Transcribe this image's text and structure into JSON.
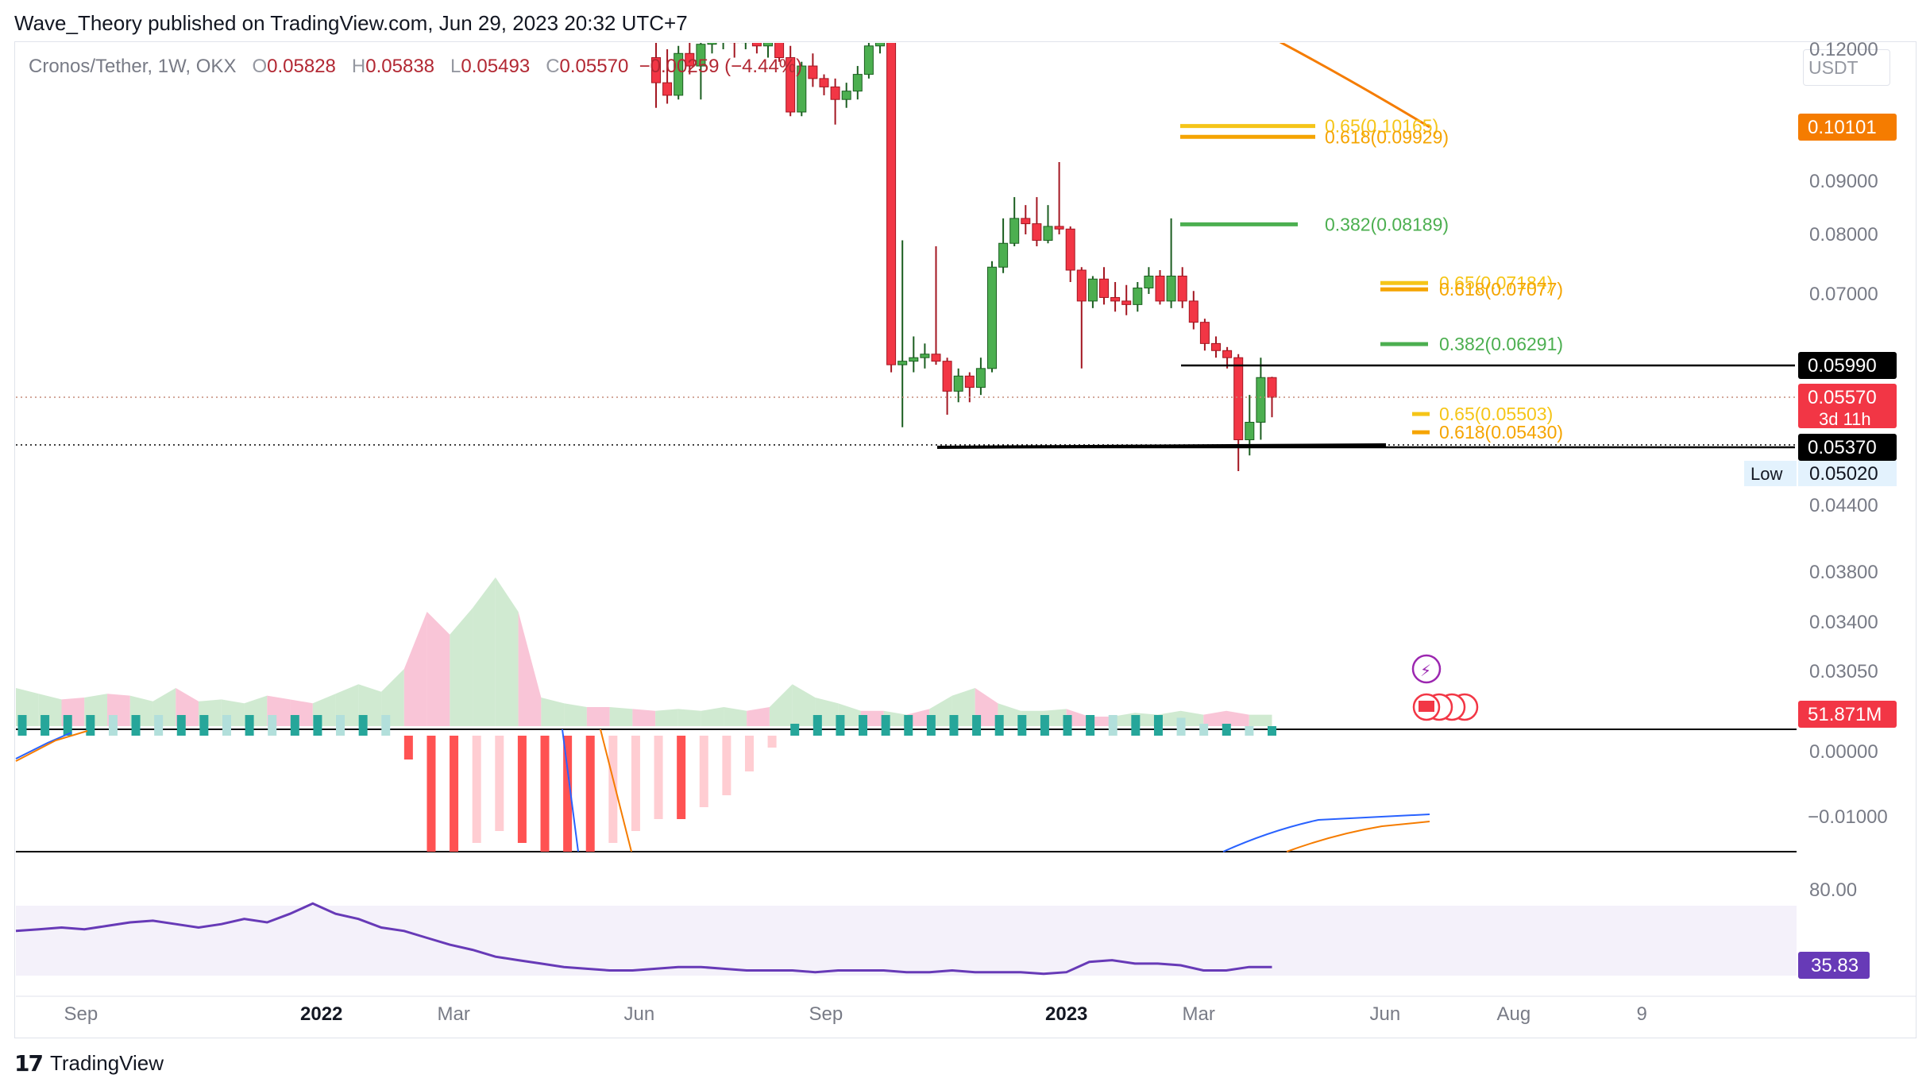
{
  "header": {
    "publisher_line": "Wave_Theory published on TradingView.com, Jun 29, 2023 20:32 UTC+7"
  },
  "legend": {
    "symbol": "Cronos/Tether, 1W, OKX",
    "open_label": "O",
    "open": "0.05828",
    "high_label": "H",
    "high": "0.05838",
    "low_label": "L",
    "low": "0.05493",
    "close_label": "C",
    "close": "0.05570",
    "change": "−0.00259 (−4.44%)"
  },
  "currency": "USDT",
  "price_axis": {
    "ticks": [
      "0.12000",
      "0.09000",
      "0.08000",
      "0.07000",
      "0.04400",
      "0.03800",
      "0.03400",
      "0.03050"
    ],
    "badges": [
      {
        "name": "fib-level-badge",
        "text": "0.10101",
        "color": "#f57c00"
      },
      {
        "name": "resistance-badge",
        "text": "0.05990",
        "color": "#000000"
      },
      {
        "name": "last-price-badge",
        "text": "0.05570",
        "sub": "3d 11h",
        "color": "#f23645"
      },
      {
        "name": "support-badge",
        "text": "0.05370",
        "color": "#000000"
      }
    ],
    "low_label": "Low",
    "low_value": "0.05020",
    "volume_badge": "51.871M"
  },
  "macd_axis": {
    "ticks": [
      "0.00000",
      "−0.01000"
    ]
  },
  "rsi_axis": {
    "ticks": [
      "80.00"
    ],
    "badge": "35.83"
  },
  "time_axis": [
    "Sep",
    "2022",
    "Mar",
    "Jun",
    "Sep",
    "2023",
    "Mar",
    "Jun",
    "Aug",
    "9"
  ],
  "chart_data": {
    "type": "candlestick",
    "title": "Cronos/Tether, 1W, OKX",
    "series": [
      {
        "name": "CRO/USDT weekly",
        "candles": [
          {
            "o": 0.118,
            "h": 0.126,
            "l": 0.106,
            "c": 0.112
          },
          {
            "o": 0.112,
            "h": 0.12,
            "l": 0.107,
            "c": 0.109
          },
          {
            "o": 0.109,
            "h": 0.121,
            "l": 0.108,
            "c": 0.119
          },
          {
            "o": 0.119,
            "h": 0.125,
            "l": 0.114,
            "c": 0.116
          },
          {
            "o": 0.116,
            "h": 0.125,
            "l": 0.108,
            "c": 0.1215
          },
          {
            "o": 0.1215,
            "h": 0.126,
            "l": 0.119,
            "c": 0.124
          },
          {
            "o": 0.124,
            "h": 0.128,
            "l": 0.12,
            "c": 0.125
          },
          {
            "o": 0.125,
            "h": 0.127,
            "l": 0.118,
            "c": 0.122
          },
          {
            "o": 0.122,
            "h": 0.126,
            "l": 0.12,
            "c": 0.1245
          },
          {
            "o": 0.1245,
            "h": 0.127,
            "l": 0.119,
            "c": 0.121
          },
          {
            "o": 0.121,
            "h": 0.128,
            "l": 0.118,
            "c": 0.1255
          },
          {
            "o": 0.1255,
            "h": 0.127,
            "l": 0.117,
            "c": 0.118
          },
          {
            "o": 0.118,
            "h": 0.121,
            "l": 0.104,
            "c": 0.105
          },
          {
            "o": 0.105,
            "h": 0.117,
            "l": 0.104,
            "c": 0.116
          },
          {
            "o": 0.116,
            "h": 0.119,
            "l": 0.111,
            "c": 0.113
          },
          {
            "o": 0.113,
            "h": 0.114,
            "l": 0.109,
            "c": 0.111
          },
          {
            "o": 0.111,
            "h": 0.113,
            "l": 0.102,
            "c": 0.108
          },
          {
            "o": 0.108,
            "h": 0.112,
            "l": 0.106,
            "c": 0.11
          },
          {
            "o": 0.11,
            "h": 0.116,
            "l": 0.108,
            "c": 0.114
          },
          {
            "o": 0.114,
            "h": 0.123,
            "l": 0.113,
            "c": 0.121
          },
          {
            "o": 0.121,
            "h": 0.128,
            "l": 0.119,
            "c": 0.123
          },
          {
            "o": 0.123,
            "h": 0.124,
            "l": 0.059,
            "c": 0.06
          },
          {
            "o": 0.06,
            "h": 0.079,
            "l": 0.0545,
            "c": 0.0605
          },
          {
            "o": 0.0605,
            "h": 0.064,
            "l": 0.059,
            "c": 0.061
          },
          {
            "o": 0.061,
            "h": 0.063,
            "l": 0.0595,
            "c": 0.0615
          },
          {
            "o": 0.0615,
            "h": 0.078,
            "l": 0.06,
            "c": 0.0605
          },
          {
            "o": 0.0605,
            "h": 0.061,
            "l": 0.055,
            "c": 0.0565
          },
          {
            "o": 0.0565,
            "h": 0.0595,
            "l": 0.0555,
            "c": 0.0585
          },
          {
            "o": 0.0585,
            "h": 0.059,
            "l": 0.0555,
            "c": 0.057
          },
          {
            "o": 0.057,
            "h": 0.061,
            "l": 0.056,
            "c": 0.0595
          },
          {
            "o": 0.0595,
            "h": 0.0755,
            "l": 0.059,
            "c": 0.0745
          },
          {
            "o": 0.0745,
            "h": 0.083,
            "l": 0.0735,
            "c": 0.0785
          },
          {
            "o": 0.0785,
            "h": 0.087,
            "l": 0.078,
            "c": 0.083
          },
          {
            "o": 0.083,
            "h": 0.0855,
            "l": 0.08,
            "c": 0.082
          },
          {
            "o": 0.082,
            "h": 0.087,
            "l": 0.078,
            "c": 0.079
          },
          {
            "o": 0.079,
            "h": 0.0855,
            "l": 0.0785,
            "c": 0.0815
          },
          {
            "o": 0.0815,
            "h": 0.094,
            "l": 0.08,
            "c": 0.081
          },
          {
            "o": 0.081,
            "h": 0.0815,
            "l": 0.072,
            "c": 0.074
          },
          {
            "o": 0.074,
            "h": 0.0745,
            "l": 0.0595,
            "c": 0.069
          },
          {
            "o": 0.069,
            "h": 0.073,
            "l": 0.068,
            "c": 0.0725
          },
          {
            "o": 0.0725,
            "h": 0.0745,
            "l": 0.0685,
            "c": 0.0695
          },
          {
            "o": 0.0695,
            "h": 0.072,
            "l": 0.0675,
            "c": 0.069
          },
          {
            "o": 0.069,
            "h": 0.0715,
            "l": 0.067,
            "c": 0.0685
          },
          {
            "o": 0.0685,
            "h": 0.072,
            "l": 0.0675,
            "c": 0.071
          },
          {
            "o": 0.071,
            "h": 0.0745,
            "l": 0.07,
            "c": 0.073
          },
          {
            "o": 0.073,
            "h": 0.074,
            "l": 0.0685,
            "c": 0.069
          },
          {
            "o": 0.069,
            "h": 0.083,
            "l": 0.068,
            "c": 0.073
          },
          {
            "o": 0.073,
            "h": 0.0745,
            "l": 0.068,
            "c": 0.069
          },
          {
            "o": 0.069,
            "h": 0.0705,
            "l": 0.065,
            "c": 0.066
          },
          {
            "o": 0.066,
            "h": 0.0665,
            "l": 0.062,
            "c": 0.063
          },
          {
            "o": 0.063,
            "h": 0.064,
            "l": 0.061,
            "c": 0.062
          },
          {
            "o": 0.062,
            "h": 0.0625,
            "l": 0.0595,
            "c": 0.061
          },
          {
            "o": 0.061,
            "h": 0.0615,
            "l": 0.0502,
            "c": 0.054
          },
          {
            "o": 0.054,
            "h": 0.056,
            "l": 0.0525,
            "c": 0.0547
          },
          {
            "o": 0.0547,
            "h": 0.061,
            "l": 0.054,
            "c": 0.0583
          },
          {
            "o": 0.0583,
            "h": 0.0584,
            "l": 0.0549,
            "c": 0.0557
          }
        ]
      }
    ],
    "annotations": {
      "fib_levels": [
        {
          "label": "0.65(0.10165)",
          "value": 0.10165,
          "color": "#f5c518"
        },
        {
          "label": "0.618(0.09929)",
          "value": 0.09929,
          "color": "#f5a400"
        },
        {
          "label": "0.382(0.08189)",
          "value": 0.08189,
          "color": "#4caf50"
        },
        {
          "label": "0.65(0.07184)",
          "value": 0.07184,
          "color": "#f5c518"
        },
        {
          "label": "0.618(0.07077)",
          "value": 0.07077,
          "color": "#f5a400"
        },
        {
          "label": "0.382(0.06291)",
          "value": 0.06291,
          "color": "#4caf50"
        },
        {
          "label": "0.65(0.05503)",
          "value": 0.05503,
          "color": "#f5c518"
        },
        {
          "label": "0.618(0.05430)",
          "value": 0.0543,
          "color": "#f5a400"
        }
      ],
      "horizontal_lines": [
        0.0599,
        0.0537
      ],
      "moving_average_value": 0.10101
    },
    "volume": [
      0.2,
      0.17,
      0.14,
      0.15,
      0.17,
      0.16,
      0.13,
      0.2,
      0.13,
      0.14,
      0.12,
      0.16,
      0.14,
      0.12,
      0.17,
      0.22,
      0.18,
      0.3,
      0.6,
      0.48,
      0.62,
      0.78,
      0.6,
      0.15,
      0.12,
      0.1,
      0.1,
      0.09,
      0.08,
      0.09,
      0.08,
      0.1,
      0.08,
      0.1,
      0.22,
      0.15,
      0.12,
      0.08,
      0.08,
      0.06,
      0.09,
      0.16,
      0.2,
      0.12,
      0.08,
      0.08,
      0.09,
      0.05,
      0.05,
      0.07,
      0.06,
      0.08,
      0.06,
      0.08,
      0.06,
      0.06
    ],
    "volume_unit": "relative",
    "macd_histogram": [
      0.006,
      0.008,
      0.009,
      0.009,
      0.008,
      0.008,
      0.007,
      0.007,
      0.007,
      0.006,
      0.006,
      0.005,
      0.005,
      0.005,
      0.004,
      0.004,
      0.003,
      -0.002,
      -0.01,
      -0.01,
      -0.009,
      -0.008,
      -0.009,
      -0.01,
      -0.01,
      -0.01,
      -0.009,
      -0.008,
      -0.007,
      -0.007,
      -0.006,
      -0.005,
      -0.003,
      -0.001,
      0.001,
      0.002,
      0.002,
      0.003,
      0.003,
      0.003,
      0.003,
      0.003,
      0.003,
      0.003,
      0.003,
      0.003,
      0.003,
      0.003,
      0.002,
      0.002,
      0.002,
      0.0015,
      0.001,
      0.001,
      0.0008,
      0.0008
    ],
    "rsi": [
      56,
      57,
      58,
      57,
      59,
      61,
      62,
      60,
      58,
      60,
      63,
      61,
      66,
      72,
      66,
      63,
      58,
      56,
      52,
      48,
      45,
      41,
      39,
      37,
      35,
      34,
      33,
      33,
      34,
      35,
      35,
      34,
      33,
      33,
      33,
      32,
      33,
      33,
      33,
      32,
      32,
      33,
      32,
      32,
      32,
      31,
      32,
      38,
      39,
      37,
      37,
      36,
      33,
      33,
      35,
      35
    ]
  }
}
